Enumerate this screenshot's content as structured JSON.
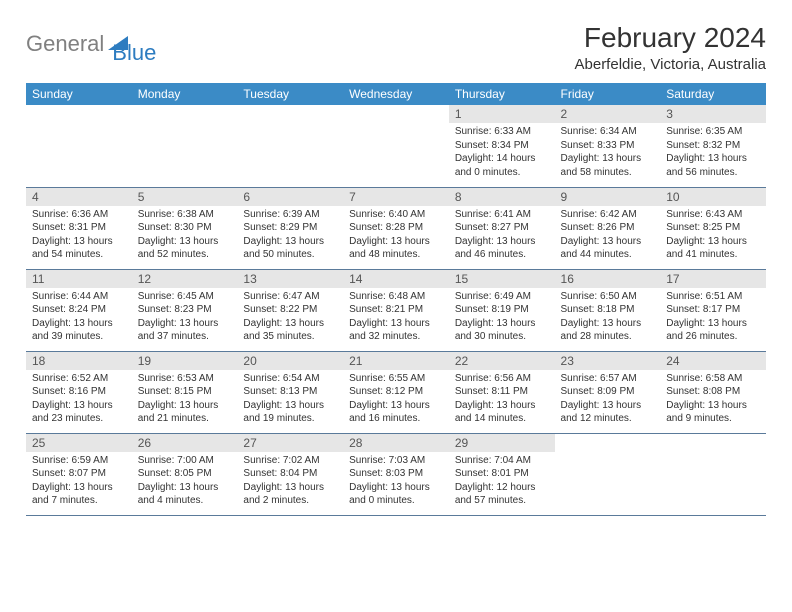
{
  "logo": {
    "gray": "General",
    "blue": "Blue"
  },
  "title": "February 2024",
  "location": "Aberfeldie, Victoria, Australia",
  "colors": {
    "header_bg": "#3b8bc6",
    "header_text": "#ffffff",
    "daynum_bg": "#e6e6e6",
    "border": "#5a7a9a",
    "logo_gray": "#808080",
    "logo_blue": "#2d7cc0"
  },
  "weekdays": [
    "Sunday",
    "Monday",
    "Tuesday",
    "Wednesday",
    "Thursday",
    "Friday",
    "Saturday"
  ],
  "weeks": [
    [
      {
        "n": "",
        "sr": "",
        "ss": "",
        "dl": ""
      },
      {
        "n": "",
        "sr": "",
        "ss": "",
        "dl": ""
      },
      {
        "n": "",
        "sr": "",
        "ss": "",
        "dl": ""
      },
      {
        "n": "",
        "sr": "",
        "ss": "",
        "dl": ""
      },
      {
        "n": "1",
        "sr": "Sunrise: 6:33 AM",
        "ss": "Sunset: 8:34 PM",
        "dl": "Daylight: 14 hours and 0 minutes."
      },
      {
        "n": "2",
        "sr": "Sunrise: 6:34 AM",
        "ss": "Sunset: 8:33 PM",
        "dl": "Daylight: 13 hours and 58 minutes."
      },
      {
        "n": "3",
        "sr": "Sunrise: 6:35 AM",
        "ss": "Sunset: 8:32 PM",
        "dl": "Daylight: 13 hours and 56 minutes."
      }
    ],
    [
      {
        "n": "4",
        "sr": "Sunrise: 6:36 AM",
        "ss": "Sunset: 8:31 PM",
        "dl": "Daylight: 13 hours and 54 minutes."
      },
      {
        "n": "5",
        "sr": "Sunrise: 6:38 AM",
        "ss": "Sunset: 8:30 PM",
        "dl": "Daylight: 13 hours and 52 minutes."
      },
      {
        "n": "6",
        "sr": "Sunrise: 6:39 AM",
        "ss": "Sunset: 8:29 PM",
        "dl": "Daylight: 13 hours and 50 minutes."
      },
      {
        "n": "7",
        "sr": "Sunrise: 6:40 AM",
        "ss": "Sunset: 8:28 PM",
        "dl": "Daylight: 13 hours and 48 minutes."
      },
      {
        "n": "8",
        "sr": "Sunrise: 6:41 AM",
        "ss": "Sunset: 8:27 PM",
        "dl": "Daylight: 13 hours and 46 minutes."
      },
      {
        "n": "9",
        "sr": "Sunrise: 6:42 AM",
        "ss": "Sunset: 8:26 PM",
        "dl": "Daylight: 13 hours and 44 minutes."
      },
      {
        "n": "10",
        "sr": "Sunrise: 6:43 AM",
        "ss": "Sunset: 8:25 PM",
        "dl": "Daylight: 13 hours and 41 minutes."
      }
    ],
    [
      {
        "n": "11",
        "sr": "Sunrise: 6:44 AM",
        "ss": "Sunset: 8:24 PM",
        "dl": "Daylight: 13 hours and 39 minutes."
      },
      {
        "n": "12",
        "sr": "Sunrise: 6:45 AM",
        "ss": "Sunset: 8:23 PM",
        "dl": "Daylight: 13 hours and 37 minutes."
      },
      {
        "n": "13",
        "sr": "Sunrise: 6:47 AM",
        "ss": "Sunset: 8:22 PM",
        "dl": "Daylight: 13 hours and 35 minutes."
      },
      {
        "n": "14",
        "sr": "Sunrise: 6:48 AM",
        "ss": "Sunset: 8:21 PM",
        "dl": "Daylight: 13 hours and 32 minutes."
      },
      {
        "n": "15",
        "sr": "Sunrise: 6:49 AM",
        "ss": "Sunset: 8:19 PM",
        "dl": "Daylight: 13 hours and 30 minutes."
      },
      {
        "n": "16",
        "sr": "Sunrise: 6:50 AM",
        "ss": "Sunset: 8:18 PM",
        "dl": "Daylight: 13 hours and 28 minutes."
      },
      {
        "n": "17",
        "sr": "Sunrise: 6:51 AM",
        "ss": "Sunset: 8:17 PM",
        "dl": "Daylight: 13 hours and 26 minutes."
      }
    ],
    [
      {
        "n": "18",
        "sr": "Sunrise: 6:52 AM",
        "ss": "Sunset: 8:16 PM",
        "dl": "Daylight: 13 hours and 23 minutes."
      },
      {
        "n": "19",
        "sr": "Sunrise: 6:53 AM",
        "ss": "Sunset: 8:15 PM",
        "dl": "Daylight: 13 hours and 21 minutes."
      },
      {
        "n": "20",
        "sr": "Sunrise: 6:54 AM",
        "ss": "Sunset: 8:13 PM",
        "dl": "Daylight: 13 hours and 19 minutes."
      },
      {
        "n": "21",
        "sr": "Sunrise: 6:55 AM",
        "ss": "Sunset: 8:12 PM",
        "dl": "Daylight: 13 hours and 16 minutes."
      },
      {
        "n": "22",
        "sr": "Sunrise: 6:56 AM",
        "ss": "Sunset: 8:11 PM",
        "dl": "Daylight: 13 hours and 14 minutes."
      },
      {
        "n": "23",
        "sr": "Sunrise: 6:57 AM",
        "ss": "Sunset: 8:09 PM",
        "dl": "Daylight: 13 hours and 12 minutes."
      },
      {
        "n": "24",
        "sr": "Sunrise: 6:58 AM",
        "ss": "Sunset: 8:08 PM",
        "dl": "Daylight: 13 hours and 9 minutes."
      }
    ],
    [
      {
        "n": "25",
        "sr": "Sunrise: 6:59 AM",
        "ss": "Sunset: 8:07 PM",
        "dl": "Daylight: 13 hours and 7 minutes."
      },
      {
        "n": "26",
        "sr": "Sunrise: 7:00 AM",
        "ss": "Sunset: 8:05 PM",
        "dl": "Daylight: 13 hours and 4 minutes."
      },
      {
        "n": "27",
        "sr": "Sunrise: 7:02 AM",
        "ss": "Sunset: 8:04 PM",
        "dl": "Daylight: 13 hours and 2 minutes."
      },
      {
        "n": "28",
        "sr": "Sunrise: 7:03 AM",
        "ss": "Sunset: 8:03 PM",
        "dl": "Daylight: 13 hours and 0 minutes."
      },
      {
        "n": "29",
        "sr": "Sunrise: 7:04 AM",
        "ss": "Sunset: 8:01 PM",
        "dl": "Daylight: 12 hours and 57 minutes."
      },
      {
        "n": "",
        "sr": "",
        "ss": "",
        "dl": ""
      },
      {
        "n": "",
        "sr": "",
        "ss": "",
        "dl": ""
      }
    ]
  ]
}
